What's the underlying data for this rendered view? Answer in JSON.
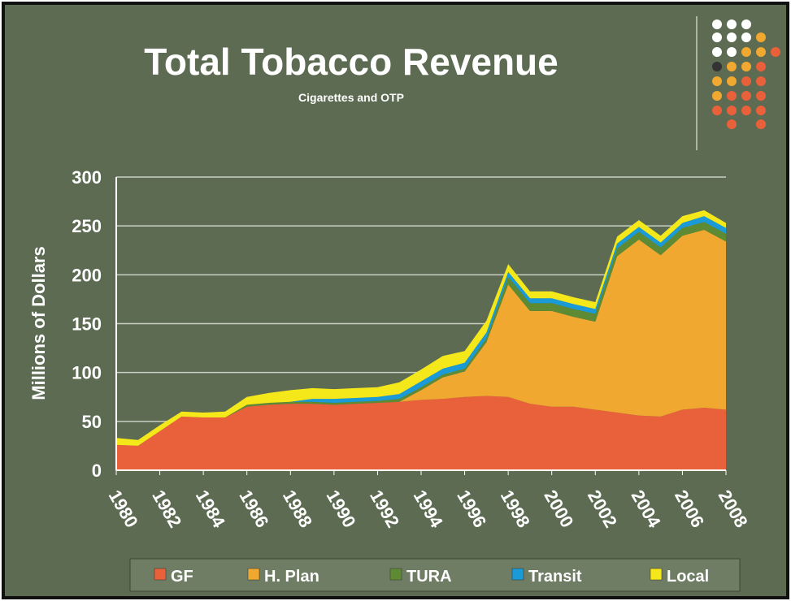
{
  "chart_data": {
    "type": "stacked_area",
    "title": "Total Tobacco Revenue",
    "subtitle": "Cigarettes and OTP",
    "y_label": "Millions of Dollars",
    "x": [
      1980,
      1981,
      1982,
      1983,
      1984,
      1985,
      1986,
      1987,
      1988,
      1989,
      1990,
      1991,
      1992,
      1993,
      1994,
      1995,
      1996,
      1997,
      1998,
      1999,
      2000,
      2001,
      2002,
      2003,
      2004,
      2005,
      2006,
      2007,
      2008
    ],
    "xlim": [
      1980,
      2008
    ],
    "xticks": [
      1980,
      1982,
      1984,
      1986,
      1988,
      1990,
      1992,
      1994,
      1996,
      1998,
      2000,
      2002,
      2004,
      2006,
      2008
    ],
    "ylim": [
      0,
      300
    ],
    "yticks": [
      0,
      50,
      100,
      150,
      200,
      250,
      300
    ],
    "grid": true,
    "series": [
      {
        "name": "GF",
        "color": "#e8613a",
        "values": [
          26,
          25,
          40,
          55,
          54,
          54,
          65,
          67,
          68,
          68,
          67,
          68,
          69,
          70,
          72,
          73,
          75,
          76,
          75,
          68,
          65,
          65,
          62,
          59,
          56,
          55,
          62,
          64,
          62
        ]
      },
      {
        "name": "H. Plan",
        "color": "#f0a830",
        "values": [
          0,
          0,
          0,
          0,
          0,
          0,
          0,
          0,
          0,
          0,
          0,
          0,
          0,
          0,
          10,
          22,
          26,
          55,
          115,
          95,
          98,
          92,
          90,
          160,
          180,
          165,
          178,
          182,
          172
        ]
      },
      {
        "name": "TURA",
        "color": "#5f8a34",
        "values": [
          0,
          0,
          0,
          0,
          0,
          0,
          2,
          2,
          2,
          2,
          2,
          2,
          2,
          3,
          3,
          3,
          3,
          4,
          8,
          8,
          8,
          8,
          8,
          8,
          8,
          8,
          8,
          8,
          8
        ]
      },
      {
        "name": "Transit",
        "color": "#1a9ad6",
        "values": [
          0,
          0,
          0,
          0,
          0,
          0,
          0,
          0,
          0,
          3,
          4,
          4,
          4,
          5,
          6,
          6,
          6,
          6,
          5,
          5,
          5,
          5,
          5,
          5,
          5,
          5,
          5,
          6,
          6
        ]
      },
      {
        "name": "Local",
        "color": "#f5e81a",
        "values": [
          7,
          6,
          6,
          5,
          5,
          6,
          8,
          10,
          12,
          11,
          10,
          10,
          10,
          12,
          12,
          13,
          12,
          12,
          8,
          7,
          7,
          7,
          7,
          7,
          7,
          7,
          7,
          6,
          5
        ]
      }
    ]
  }
}
